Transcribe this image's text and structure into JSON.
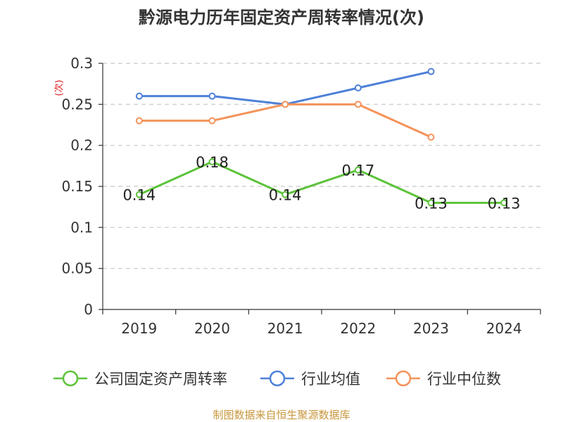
{
  "chart_data": {
    "type": "line",
    "title": "黔源电力历年固定资产周转率情况(次)",
    "ylabel": "(次)",
    "categories": [
      "2019",
      "2020",
      "2021",
      "2022",
      "2023",
      "2024"
    ],
    "ylim": [
      0,
      0.3
    ],
    "yticks": [
      "0",
      "0.05",
      "0.1",
      "0.15",
      "0.2",
      "0.25",
      "0.3"
    ],
    "grid": true,
    "legend_position": "bottom",
    "series": [
      {
        "name": "公司固定资产周转率",
        "color": "#5cc33a",
        "values": [
          0.14,
          0.18,
          0.14,
          0.17,
          0.13,
          0.13
        ],
        "labels": [
          "0.14",
          "0.18",
          "0.14",
          "0.17",
          "0.13",
          "0.13"
        ]
      },
      {
        "name": "行业均值",
        "color": "#4e80d8",
        "values": [
          0.26,
          0.26,
          0.25,
          0.27,
          0.29,
          null
        ]
      },
      {
        "name": "行业中位数",
        "color": "#f4935a",
        "values": [
          0.23,
          0.23,
          0.25,
          0.25,
          0.21,
          null
        ]
      }
    ],
    "source": "制图数据来自恒生聚源数据库"
  }
}
